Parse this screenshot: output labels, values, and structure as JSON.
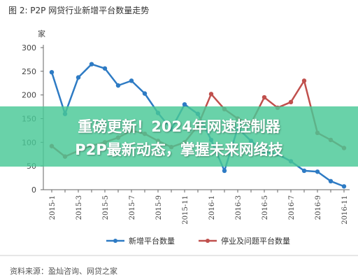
{
  "figure_title": "图 2: P2P 网贷行业新增平台数量走势",
  "source_note": "资料来源：盈灿咨询、网贷之家",
  "banner": {
    "line1": "重磅更新！2024年网速控制器",
    "line2": "P2P最新动态，掌握未来网络技"
  },
  "colors": {
    "series_new": "#2e7bc4",
    "series_problem": "#c0504d",
    "banner_bg": "#48c896"
  },
  "chart_data": {
    "type": "line",
    "ylabel": "家",
    "ylim": [
      0,
      300
    ],
    "yticks": [
      0,
      50,
      100,
      150,
      200,
      250,
      300
    ],
    "x": [
      "2015-1",
      "2015-2",
      "2015-3",
      "2015-4",
      "2015-5",
      "2015-6",
      "2015-7",
      "2015-8",
      "2015-9",
      "2015-10",
      "2015-11",
      "2015-12",
      "2016-1",
      "2016-2",
      "2016-3",
      "2016-4",
      "2016-5",
      "2016-6",
      "2016-7",
      "2016-8",
      "2016-9",
      "2016-10",
      "2016-11"
    ],
    "x_tick_labels": [
      "2015-1",
      "",
      "2015-3",
      "",
      "2015-5",
      "",
      "2015-7",
      "",
      "2015-9",
      "",
      "2015-11",
      "",
      "2016-1",
      "",
      "2016-3",
      "",
      "2016-5",
      "",
      "2016-7",
      "",
      "2016-9",
      "",
      "2016-11"
    ],
    "series": [
      {
        "name": "新增平台数量",
        "values": [
          248,
          160,
          237,
          265,
          256,
          220,
          230,
          203,
          162,
          128,
          180,
          160,
          105,
          40,
          130,
          103,
          80,
          75,
          60,
          40,
          38,
          18,
          7
        ]
      },
      {
        "name": "停业及问题平台数量",
        "values": [
          92,
          70,
          82,
          93,
          100,
          110,
          125,
          118,
          103,
          90,
          100,
          135,
          202,
          170,
          150,
          140,
          195,
          173,
          185,
          230,
          120,
          105,
          88
        ]
      }
    ],
    "legend_position": "bottom",
    "grid": false
  }
}
